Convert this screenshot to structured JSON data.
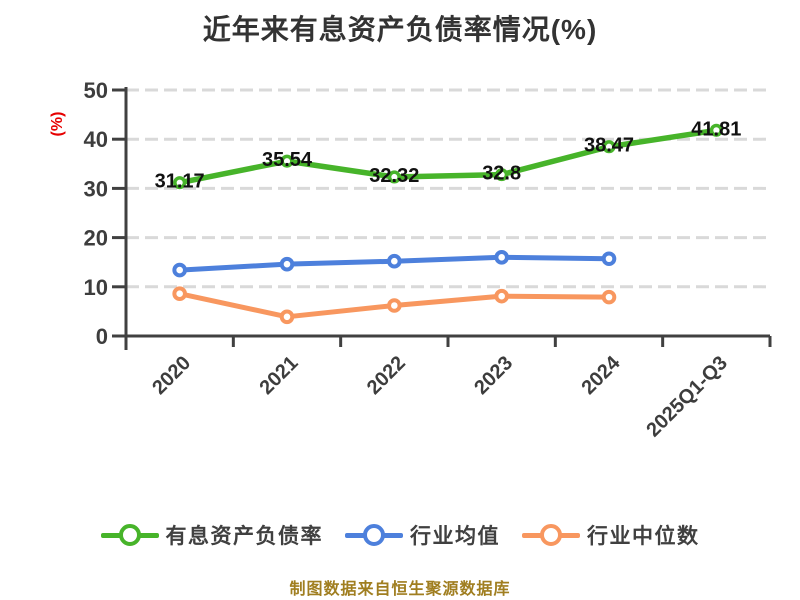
{
  "title": "近年来有息资产负债率情况(%)",
  "footer": "制图数据来自恒生聚源数据库",
  "colors": {
    "axis": "#404040",
    "grid": "#d9d9d9",
    "tick_label": "#3d3d3d",
    "value_label": "#111111",
    "title": "#333333",
    "footer": "#a07e20",
    "ylabel": "#e60000",
    "background": "#ffffff"
  },
  "chart_data": {
    "type": "line",
    "title": "近年来有息资产负债率情况(%)",
    "xlabel": "",
    "ylabel": "(%)",
    "categories": [
      "2020",
      "2021",
      "2022",
      "2023",
      "2024",
      "2025Q1-Q3"
    ],
    "ylim": [
      0,
      50
    ],
    "yticks": [
      0,
      10,
      20,
      30,
      40,
      50
    ],
    "grid": "horizontal-dashed",
    "legend_position": "bottom",
    "series": [
      {
        "name": "有息资产负债率",
        "color": "#47b42a",
        "values": [
          31.17,
          35.54,
          32.32,
          32.8,
          38.47,
          41.81
        ],
        "data_labels": [
          "31.17",
          "35.54",
          "32.32",
          "32.8",
          "38.47",
          "41.81"
        ]
      },
      {
        "name": "行业均值",
        "color": "#4d80dc",
        "values": [
          13.4,
          14.6,
          15.2,
          16.0,
          15.7
        ],
        "data_labels": null
      },
      {
        "name": "行业中位数",
        "color": "#f8975f",
        "values": [
          8.6,
          3.9,
          6.2,
          8.1,
          7.9
        ],
        "data_labels": null
      }
    ],
    "source_note": "制图数据来自恒生聚源数据库"
  }
}
